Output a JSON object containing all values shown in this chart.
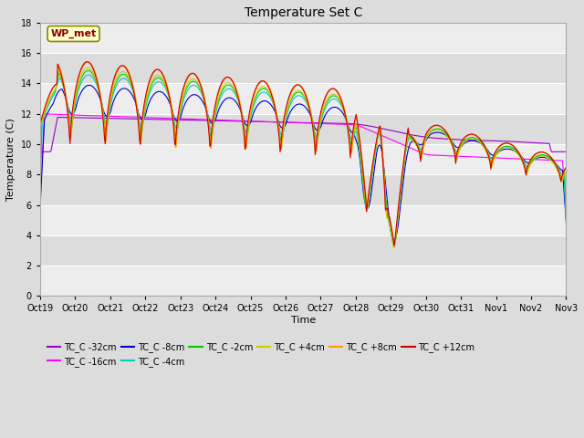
{
  "title": "Temperature Set C",
  "xlabel": "Time",
  "ylabel": "Temperature (C)",
  "ylim": [
    0,
    18
  ],
  "yticks": [
    0,
    2,
    4,
    6,
    8,
    10,
    12,
    14,
    16,
    18
  ],
  "bg_color": "#dcdcdc",
  "plot_bg": "#dcdcdc",
  "annotation_text": "WP_met",
  "annotation_color": "#8B0000",
  "annotation_bg": "#ffffcc",
  "series_colors": {
    "TC_C -32cm": "#9900cc",
    "TC_C -16cm": "#ff00ff",
    "TC_C -8cm": "#0000cc",
    "TC_C -4cm": "#00cccc",
    "TC_C -2cm": "#00cc00",
    "TC_C +4cm": "#cccc00",
    "TC_C +8cm": "#ff9900",
    "TC_C +12cm": "#cc0000"
  },
  "x_tick_labels": [
    "Oct 19",
    "Oct 20",
    "Oct 21",
    "Oct 22",
    "Oct 23",
    "Oct 24",
    "Oct 25",
    "Oct 26",
    "Oct 27",
    "Oct 28",
    "Oct 29",
    "Oct 30",
    "Oct 31",
    "Nov 1",
    "Nov 2",
    "Nov 3"
  ],
  "n_days": 15,
  "figsize": [
    6.4,
    4.8
  ],
  "dpi": 100
}
